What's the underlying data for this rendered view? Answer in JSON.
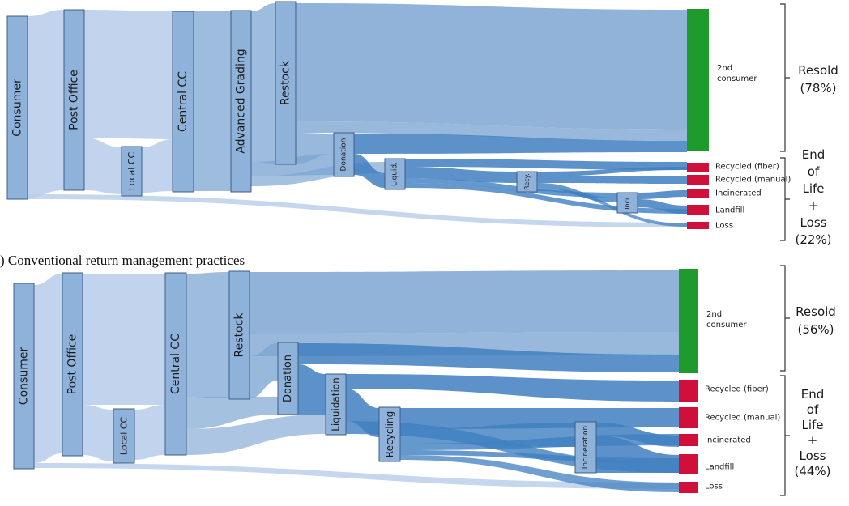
{
  "caption": ") Conventional return management practices",
  "colors": {
    "node": "#8fb2da",
    "node_stroke": "#3e5f85",
    "flow_light": "#b7cdea",
    "flow_mid": "#7ea6d3",
    "flow_dark": "#3f7fc0",
    "resold": "#1f9a2d",
    "eol": "#d0103a",
    "bracket": "#333333"
  },
  "diagrams": [
    {
      "nodes": {
        "consumer": "Consumer",
        "post_office": "Post Office",
        "local_cc": "Local CC",
        "central_cc": "Central CC",
        "advanced_grading": "Advanced Grading",
        "restock": "Restock",
        "donation": "Donation",
        "liquidation": "Liquid.",
        "recycling": "Recy.",
        "incineration": "Inci."
      },
      "targets": {
        "second_consumer": [
          "2nd",
          "consumer"
        ],
        "recycled_fiber": "Recycled (fiber)",
        "recycled_manual": "Recycled (manual)",
        "incinerated": "Incinerated",
        "landfill": "Landfill",
        "loss": "Loss"
      },
      "groups": {
        "resold": [
          "Resold",
          "(78%)"
        ],
        "eol": [
          "End",
          "of",
          "Life",
          "+",
          "Loss",
          "(22%)"
        ]
      }
    },
    {
      "nodes": {
        "consumer": "Consumer",
        "post_office": "Post Office",
        "local_cc": "Local CC",
        "central_cc": "Central CC",
        "restock": "Restock",
        "donation": "Donation",
        "liquidation": "Liquidation",
        "recycling": "Recycling",
        "incineration": "Incineration"
      },
      "targets": {
        "second_consumer": [
          "2nd",
          "consumer"
        ],
        "recycled_fiber": "Recycled (fiber)",
        "recycled_manual": "Recycled (manual)",
        "incinerated": "Incinerated",
        "landfill": "Landfill",
        "loss": "Loss"
      },
      "groups": {
        "resold": [
          "Resold",
          "(56%)"
        ],
        "eol": [
          "End",
          "of",
          "Life",
          "+",
          "Loss",
          "(44%)"
        ]
      }
    }
  ]
}
